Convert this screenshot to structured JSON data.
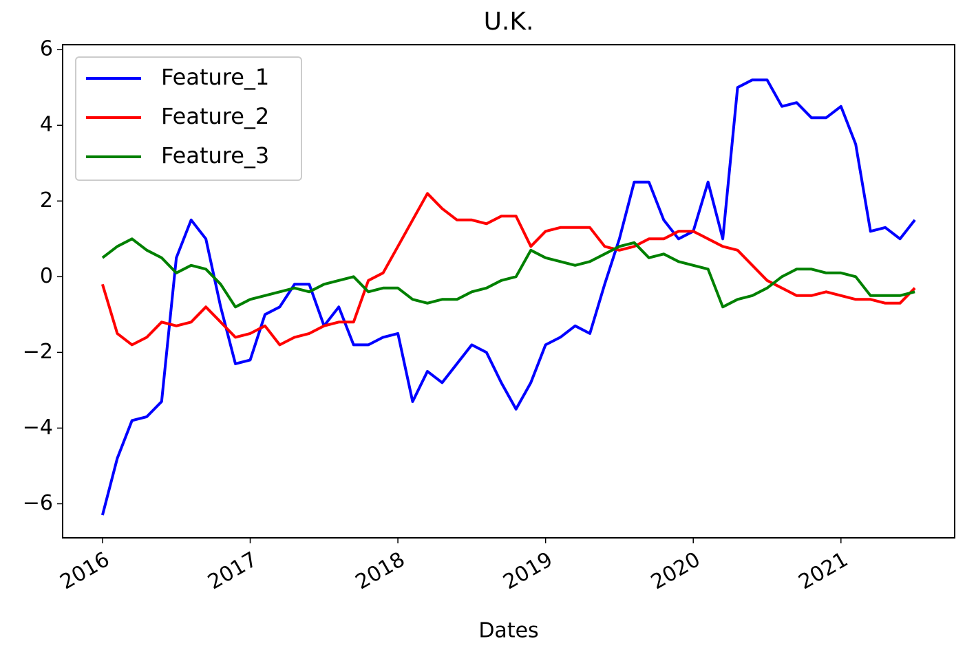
{
  "chart_data": {
    "type": "line",
    "title": "U.K.",
    "x_label": "Dates",
    "x": [
      2016.0,
      2016.1,
      2016.2,
      2016.3,
      2016.4,
      2016.5,
      2016.6,
      2016.7,
      2016.8,
      2016.9,
      2017.0,
      2017.1,
      2017.2,
      2017.3,
      2017.4,
      2017.5,
      2017.6,
      2017.7,
      2017.8,
      2017.9,
      2018.0,
      2018.1,
      2018.2,
      2018.3,
      2018.4,
      2018.5,
      2018.6,
      2018.7,
      2018.8,
      2018.9,
      2019.0,
      2019.1,
      2019.2,
      2019.3,
      2019.4,
      2019.5,
      2019.6,
      2019.7,
      2019.8,
      2019.9,
      2020.0,
      2020.1,
      2020.2,
      2020.3,
      2020.4,
      2020.5,
      2020.6,
      2020.7,
      2020.8,
      2020.9,
      2021.0,
      2021.1,
      2021.2,
      2021.3,
      2021.4,
      2021.5
    ],
    "series": [
      {
        "name": "Feature_1",
        "color": "#0000ff",
        "values": [
          -6.3,
          -4.8,
          -3.8,
          -3.7,
          -3.3,
          0.5,
          1.5,
          1.0,
          -0.8,
          -2.3,
          -2.2,
          -1.0,
          -0.8,
          -0.2,
          -0.2,
          -1.3,
          -0.8,
          -1.8,
          -1.8,
          -1.6,
          -1.5,
          -3.3,
          -2.5,
          -2.8,
          -2.3,
          -1.8,
          -2.0,
          -2.8,
          -3.5,
          -2.8,
          -1.8,
          -1.6,
          -1.3,
          -1.5,
          -0.2,
          1.0,
          2.5,
          2.5,
          1.5,
          1.0,
          1.2,
          2.5,
          1.0,
          5.0,
          5.2,
          5.2,
          4.5,
          4.6,
          4.2,
          4.2,
          4.5,
          3.5,
          1.2,
          1.3,
          1.0,
          1.5
        ]
      },
      {
        "name": "Feature_2",
        "color": "#ff0000",
        "values": [
          -0.2,
          -1.5,
          -1.8,
          -1.6,
          -1.2,
          -1.3,
          -1.2,
          -0.8,
          -1.2,
          -1.6,
          -1.5,
          -1.3,
          -1.8,
          -1.6,
          -1.5,
          -1.3,
          -1.2,
          -1.2,
          -0.1,
          0.1,
          0.8,
          1.5,
          2.2,
          1.8,
          1.5,
          1.5,
          1.4,
          1.6,
          1.6,
          0.8,
          1.2,
          1.3,
          1.3,
          1.3,
          0.8,
          0.7,
          0.8,
          1.0,
          1.0,
          1.2,
          1.2,
          1.0,
          0.8,
          0.7,
          0.3,
          -0.1,
          -0.3,
          -0.5,
          -0.5,
          -0.4,
          -0.5,
          -0.6,
          -0.6,
          -0.7,
          -0.7,
          -0.3
        ]
      },
      {
        "name": "Feature_3",
        "color": "#008000",
        "values": [
          0.5,
          0.8,
          1.0,
          0.7,
          0.5,
          0.1,
          0.3,
          0.2,
          -0.2,
          -0.8,
          -0.6,
          -0.5,
          -0.4,
          -0.3,
          -0.4,
          -0.2,
          -0.1,
          0.0,
          -0.4,
          -0.3,
          -0.3,
          -0.6,
          -0.7,
          -0.6,
          -0.6,
          -0.4,
          -0.3,
          -0.1,
          0.0,
          0.7,
          0.5,
          0.4,
          0.3,
          0.4,
          0.6,
          0.8,
          0.9,
          0.5,
          0.6,
          0.4,
          0.3,
          0.2,
          -0.8,
          -0.6,
          -0.5,
          -0.3,
          0.0,
          0.2,
          0.2,
          0.1,
          0.1,
          0.0,
          -0.5,
          -0.5,
          -0.5,
          -0.4
        ]
      }
    ],
    "xlim": [
      2015.73,
      2021.77
    ],
    "xticks": [
      2016,
      2017,
      2018,
      2019,
      2020,
      2021
    ],
    "ylim": [
      -6.9,
      6.13
    ],
    "yticks": [
      {
        "value": -6,
        "label": "−6"
      },
      {
        "value": -4,
        "label": "−4"
      },
      {
        "value": -2,
        "label": "−2"
      },
      0,
      2,
      4,
      6
    ],
    "legend": "upper left"
  }
}
